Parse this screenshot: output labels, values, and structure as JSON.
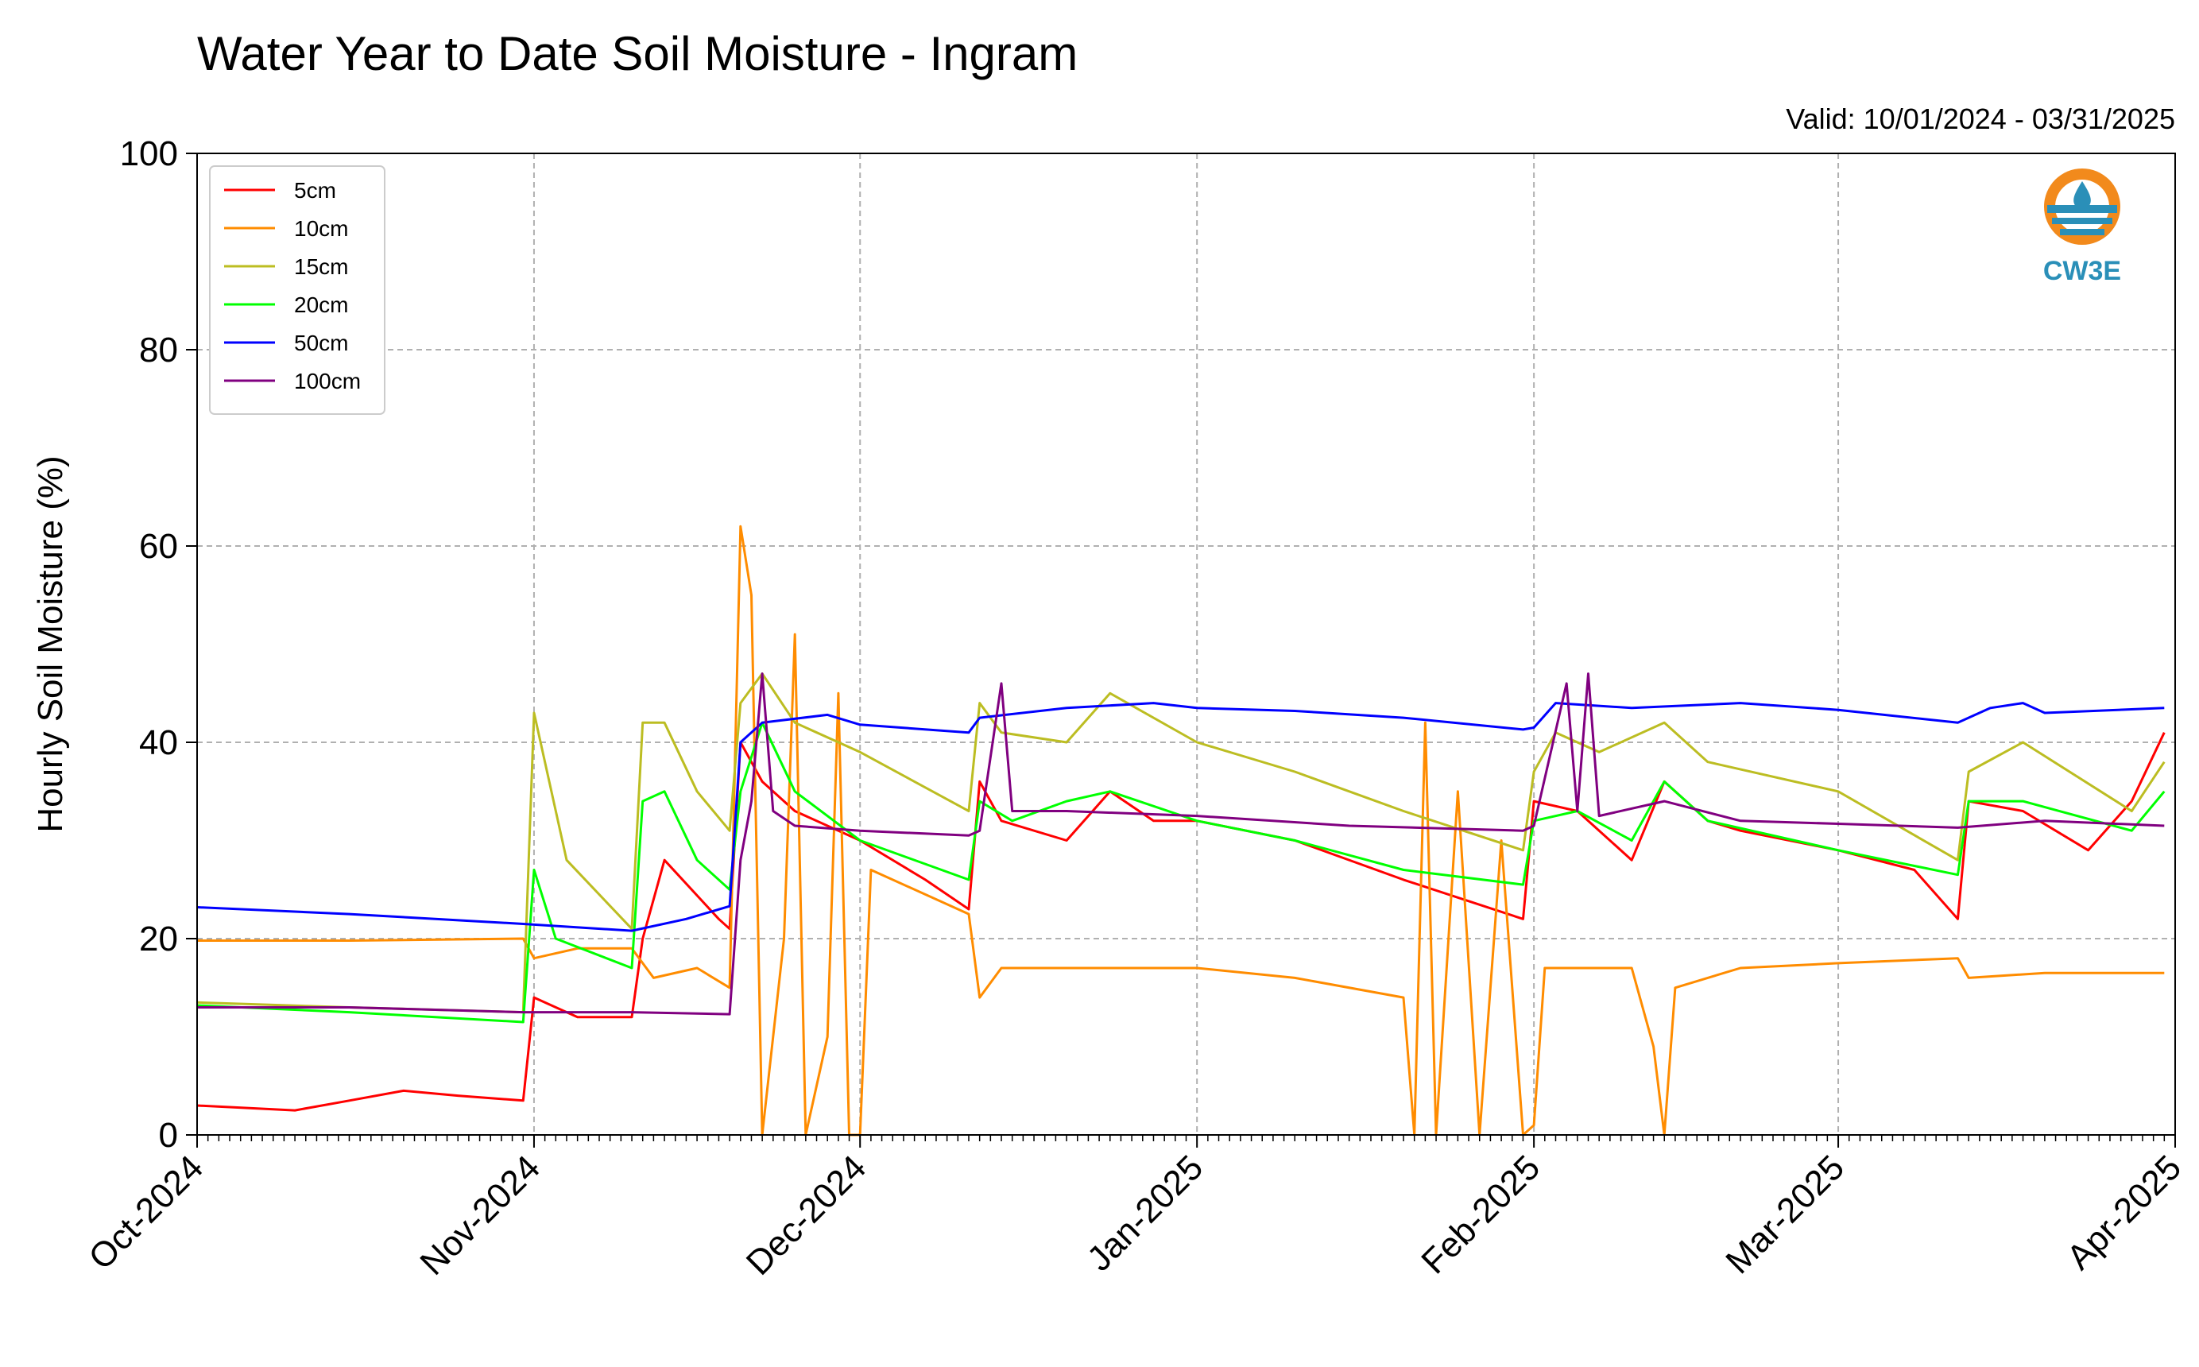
{
  "chart_data": {
    "type": "line",
    "title": "Water Year to Date Soil Moisture - Ingram",
    "subtitle": "Valid: 10/01/2024 - 03/31/2025",
    "xlabel": "",
    "ylabel": "Hourly Soil Moisture (%)",
    "ylim": [
      0,
      100
    ],
    "yticks": [
      0,
      20,
      40,
      60,
      80,
      100
    ],
    "ytick_labels": [
      "0",
      "20",
      "40",
      "60",
      "80",
      "100"
    ],
    "xlim": [
      "2024-10-01",
      "2025-04-01"
    ],
    "xticks": [
      "2024-10-01",
      "2024-11-01",
      "2024-12-01",
      "2025-01-01",
      "2025-02-01",
      "2025-03-01",
      "2025-04-01"
    ],
    "xtick_labels": [
      "Oct-2024",
      "Nov-2024",
      "Dec-2024",
      "Jan-2025",
      "Feb-2025",
      "Mar-2025",
      "Apr-2025"
    ],
    "grid": true,
    "legend_position": "top-left",
    "logo": {
      "text": "CW3E",
      "accent": "#f28a1c",
      "primary": "#2a8fb8"
    },
    "series": [
      {
        "name": "5cm",
        "color": "#ff0000",
        "points": [
          [
            "2024-10-01",
            3
          ],
          [
            "2024-10-10",
            2.5
          ],
          [
            "2024-10-15",
            3.5
          ],
          [
            "2024-10-20",
            4.5
          ],
          [
            "2024-10-25",
            4
          ],
          [
            "2024-10-31",
            3.5
          ],
          [
            "2024-11-01",
            14
          ],
          [
            "2024-11-05",
            12
          ],
          [
            "2024-11-10",
            12
          ],
          [
            "2024-11-11",
            20
          ],
          [
            "2024-11-13",
            28
          ],
          [
            "2024-11-18",
            22
          ],
          [
            "2024-11-19",
            21
          ],
          [
            "2024-11-20",
            40
          ],
          [
            "2024-11-22",
            36
          ],
          [
            "2024-11-25",
            33
          ],
          [
            "2024-12-01",
            30
          ],
          [
            "2024-12-07",
            26
          ],
          [
            "2024-12-11",
            23
          ],
          [
            "2024-12-12",
            36
          ],
          [
            "2024-12-14",
            32
          ],
          [
            "2024-12-20",
            30
          ],
          [
            "2024-12-24",
            35
          ],
          [
            "2024-12-28",
            32
          ],
          [
            "2025-01-01",
            32
          ],
          [
            "2025-01-10",
            30
          ],
          [
            "2025-01-20",
            26
          ],
          [
            "2025-01-31",
            22
          ],
          [
            "2025-02-01",
            34
          ],
          [
            "2025-02-05",
            33
          ],
          [
            "2025-02-10",
            28
          ],
          [
            "2025-02-13",
            36
          ],
          [
            "2025-02-17",
            32
          ],
          [
            "2025-02-20",
            31
          ],
          [
            "2025-03-01",
            29
          ],
          [
            "2025-03-08",
            27
          ],
          [
            "2025-03-12",
            22
          ],
          [
            "2025-03-13",
            34
          ],
          [
            "2025-03-18",
            33
          ],
          [
            "2025-03-24",
            29
          ],
          [
            "2025-03-28",
            34
          ],
          [
            "2025-03-31",
            41
          ]
        ]
      },
      {
        "name": "10cm",
        "color": "#ff8c00",
        "points": [
          [
            "2024-10-01",
            19.8
          ],
          [
            "2024-10-15",
            19.8
          ],
          [
            "2024-10-31",
            20
          ],
          [
            "2024-11-01",
            18
          ],
          [
            "2024-11-05",
            19
          ],
          [
            "2024-11-10",
            19
          ],
          [
            "2024-11-12",
            16
          ],
          [
            "2024-11-16",
            17
          ],
          [
            "2024-11-19",
            15
          ],
          [
            "2024-11-20",
            62
          ],
          [
            "2024-11-21",
            55
          ],
          [
            "2024-11-22",
            0
          ],
          [
            "2024-11-24",
            20
          ],
          [
            "2024-11-25",
            51
          ],
          [
            "2024-11-26",
            0
          ],
          [
            "2024-11-28",
            10
          ],
          [
            "2024-11-29",
            45
          ],
          [
            "2024-11-30",
            0
          ],
          [
            "2024-12-01",
            0
          ],
          [
            "2024-12-02",
            27
          ],
          [
            "2024-12-11",
            22.5
          ],
          [
            "2024-12-12",
            14
          ],
          [
            "2024-12-14",
            17
          ],
          [
            "2024-12-20",
            17
          ],
          [
            "2025-01-01",
            17
          ],
          [
            "2025-01-10",
            16
          ],
          [
            "2025-01-20",
            14
          ],
          [
            "2025-01-21",
            0
          ],
          [
            "2025-01-22",
            42
          ],
          [
            "2025-01-23",
            0
          ],
          [
            "2025-01-25",
            35
          ],
          [
            "2025-01-27",
            0
          ],
          [
            "2025-01-29",
            30
          ],
          [
            "2025-01-31",
            0
          ],
          [
            "2025-02-01",
            1
          ],
          [
            "2025-02-02",
            17
          ],
          [
            "2025-02-10",
            17
          ],
          [
            "2025-02-12",
            9
          ],
          [
            "2025-02-13",
            0
          ],
          [
            "2025-02-14",
            15
          ],
          [
            "2025-02-20",
            17
          ],
          [
            "2025-03-01",
            17.5
          ],
          [
            "2025-03-12",
            18
          ],
          [
            "2025-03-13",
            16
          ],
          [
            "2025-03-20",
            16.5
          ],
          [
            "2025-03-31",
            16.5
          ]
        ]
      },
      {
        "name": "15cm",
        "color": "#bcbd22",
        "points": [
          [
            "2024-10-01",
            13.5
          ],
          [
            "2024-10-15",
            13
          ],
          [
            "2024-10-31",
            12.5
          ],
          [
            "2024-11-01",
            43
          ],
          [
            "2024-11-04",
            28
          ],
          [
            "2024-11-10",
            21
          ],
          [
            "2024-11-11",
            42
          ],
          [
            "2024-11-13",
            42
          ],
          [
            "2024-11-16",
            35
          ],
          [
            "2024-11-19",
            31
          ],
          [
            "2024-11-20",
            44
          ],
          [
            "2024-11-22",
            47
          ],
          [
            "2024-11-25",
            42
          ],
          [
            "2024-12-01",
            39
          ],
          [
            "2024-12-11",
            33
          ],
          [
            "2024-12-12",
            44
          ],
          [
            "2024-12-14",
            41
          ],
          [
            "2024-12-20",
            40
          ],
          [
            "2024-12-24",
            45
          ],
          [
            "2025-01-01",
            40
          ],
          [
            "2025-01-10",
            37
          ],
          [
            "2025-01-20",
            33
          ],
          [
            "2025-01-31",
            29
          ],
          [
            "2025-02-01",
            37
          ],
          [
            "2025-02-03",
            41
          ],
          [
            "2025-02-07",
            39
          ],
          [
            "2025-02-13",
            42
          ],
          [
            "2025-02-17",
            38
          ],
          [
            "2025-03-01",
            35
          ],
          [
            "2025-03-12",
            28
          ],
          [
            "2025-03-13",
            37
          ],
          [
            "2025-03-18",
            40
          ],
          [
            "2025-03-28",
            33
          ],
          [
            "2025-03-31",
            38
          ]
        ]
      },
      {
        "name": "20cm",
        "color": "#00ff00",
        "points": [
          [
            "2024-10-01",
            13.2
          ],
          [
            "2024-10-15",
            12.5
          ],
          [
            "2024-10-31",
            11.5
          ],
          [
            "2024-11-01",
            27
          ],
          [
            "2024-11-03",
            20
          ],
          [
            "2024-11-10",
            17
          ],
          [
            "2024-11-11",
            34
          ],
          [
            "2024-11-13",
            35
          ],
          [
            "2024-11-16",
            28
          ],
          [
            "2024-11-19",
            25
          ],
          [
            "2024-11-20",
            35
          ],
          [
            "2024-11-22",
            42
          ],
          [
            "2024-11-25",
            35
          ],
          [
            "2024-12-01",
            30
          ],
          [
            "2024-12-11",
            26
          ],
          [
            "2024-12-12",
            34
          ],
          [
            "2024-12-15",
            32
          ],
          [
            "2024-12-20",
            34
          ],
          [
            "2024-12-24",
            35
          ],
          [
            "2025-01-01",
            32
          ],
          [
            "2025-01-10",
            30
          ],
          [
            "2025-01-20",
            27
          ],
          [
            "2025-01-31",
            25.5
          ],
          [
            "2025-02-01",
            32
          ],
          [
            "2025-02-05",
            33
          ],
          [
            "2025-02-10",
            30
          ],
          [
            "2025-02-13",
            36
          ],
          [
            "2025-02-17",
            32
          ],
          [
            "2025-03-01",
            29
          ],
          [
            "2025-03-12",
            26.5
          ],
          [
            "2025-03-13",
            34
          ],
          [
            "2025-03-18",
            34
          ],
          [
            "2025-03-28",
            31
          ],
          [
            "2025-03-31",
            35
          ]
        ]
      },
      {
        "name": "50cm",
        "color": "#0000ff",
        "points": [
          [
            "2024-10-01",
            23.2
          ],
          [
            "2024-10-15",
            22.5
          ],
          [
            "2024-10-31",
            21.5
          ],
          [
            "2024-11-10",
            20.8
          ],
          [
            "2024-11-15",
            22
          ],
          [
            "2024-11-19",
            23.3
          ],
          [
            "2024-11-20",
            40
          ],
          [
            "2024-11-22",
            42
          ],
          [
            "2024-11-28",
            42.8
          ],
          [
            "2024-12-01",
            41.8
          ],
          [
            "2024-12-11",
            41
          ],
          [
            "2024-12-12",
            42.5
          ],
          [
            "2024-12-20",
            43.5
          ],
          [
            "2024-12-28",
            44
          ],
          [
            "2025-01-01",
            43.5
          ],
          [
            "2025-01-10",
            43.2
          ],
          [
            "2025-01-20",
            42.5
          ],
          [
            "2025-01-31",
            41.3
          ],
          [
            "2025-02-01",
            41.5
          ],
          [
            "2025-02-03",
            44
          ],
          [
            "2025-02-10",
            43.5
          ],
          [
            "2025-02-20",
            44
          ],
          [
            "2025-03-01",
            43.3
          ],
          [
            "2025-03-12",
            42
          ],
          [
            "2025-03-15",
            43.5
          ],
          [
            "2025-03-18",
            44
          ],
          [
            "2025-03-20",
            43
          ],
          [
            "2025-03-31",
            43.5
          ]
        ]
      },
      {
        "name": "100cm",
        "color": "#800080",
        "points": [
          [
            "2024-10-01",
            13
          ],
          [
            "2024-10-15",
            13
          ],
          [
            "2024-10-31",
            12.5
          ],
          [
            "2024-11-10",
            12.5
          ],
          [
            "2024-11-19",
            12.3
          ],
          [
            "2024-11-20",
            28
          ],
          [
            "2024-11-21",
            34
          ],
          [
            "2024-11-22",
            47
          ],
          [
            "2024-11-23",
            33
          ],
          [
            "2024-11-25",
            31.5
          ],
          [
            "2024-12-01",
            31
          ],
          [
            "2024-12-11",
            30.5
          ],
          [
            "2024-12-12",
            31
          ],
          [
            "2024-12-14",
            46
          ],
          [
            "2024-12-15",
            33
          ],
          [
            "2024-12-20",
            33
          ],
          [
            "2025-01-01",
            32.5
          ],
          [
            "2025-01-15",
            31.5
          ],
          [
            "2025-01-31",
            31
          ],
          [
            "2025-02-01",
            31.5
          ],
          [
            "2025-02-04",
            46
          ],
          [
            "2025-02-05",
            33
          ],
          [
            "2025-02-06",
            47
          ],
          [
            "2025-02-07",
            32.5
          ],
          [
            "2025-02-13",
            34
          ],
          [
            "2025-02-20",
            32
          ],
          [
            "2025-03-01",
            31.7
          ],
          [
            "2025-03-12",
            31.3
          ],
          [
            "2025-03-20",
            32
          ],
          [
            "2025-03-31",
            31.5
          ]
        ]
      }
    ]
  }
}
